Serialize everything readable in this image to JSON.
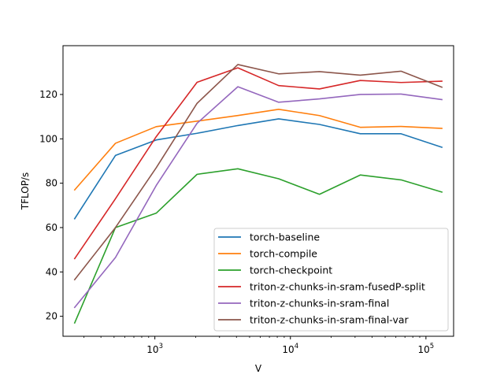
{
  "chart_data": {
    "type": "line",
    "title": "",
    "xlabel": "V",
    "ylabel": "TFLOP/s",
    "x_scale": "log",
    "xlim": [
      210,
      160000
    ],
    "ylim": [
      11,
      142
    ],
    "x_ticks": [
      {
        "value": 1000,
        "base": "10",
        "exp": "3"
      },
      {
        "value": 10000,
        "base": "10",
        "exp": "4"
      },
      {
        "value": 100000,
        "base": "10",
        "exp": "5"
      }
    ],
    "y_ticks": [
      "20",
      "40",
      "60",
      "80",
      "100",
      "120"
    ],
    "grid": false,
    "legend_position": "lower-right",
    "x": [
      256,
      512,
      1024,
      2048,
      4096,
      8192,
      16384,
      32768,
      65536,
      131072
    ],
    "series": [
      {
        "name": "torch-baseline",
        "color": "#1f77b4",
        "values": [
          64,
          92.5,
          99.5,
          102.5,
          106,
          109,
          106.5,
          102.3,
          102.3,
          96.2
        ]
      },
      {
        "name": "torch-compile",
        "color": "#ff7f0e",
        "values": [
          77,
          98,
          105.5,
          108,
          110.5,
          113.3,
          110.5,
          105.2,
          105.6,
          104.7
        ]
      },
      {
        "name": "torch-checkpoint",
        "color": "#2ca02c",
        "values": [
          17,
          60,
          66.5,
          84,
          86.5,
          82,
          75,
          83.7,
          81.5,
          76
        ]
      },
      {
        "name": "triton-z-chunks-in-sram-fusedP-split",
        "color": "#d62728",
        "values": [
          46,
          73,
          101,
          125.5,
          132,
          124,
          122.5,
          126.3,
          125.4,
          126
        ]
      },
      {
        "name": "triton-z-chunks-in-sram-final",
        "color": "#9467bd",
        "values": [
          24,
          46.5,
          79,
          107,
          123.5,
          116.5,
          118,
          120,
          120.2,
          117.7
        ]
      },
      {
        "name": "triton-z-chunks-in-sram-final-var",
        "color": "#8c564b",
        "values": [
          36.5,
          60,
          87,
          116,
          133.5,
          129.3,
          130.3,
          128.7,
          130.5,
          123.3
        ]
      }
    ]
  }
}
